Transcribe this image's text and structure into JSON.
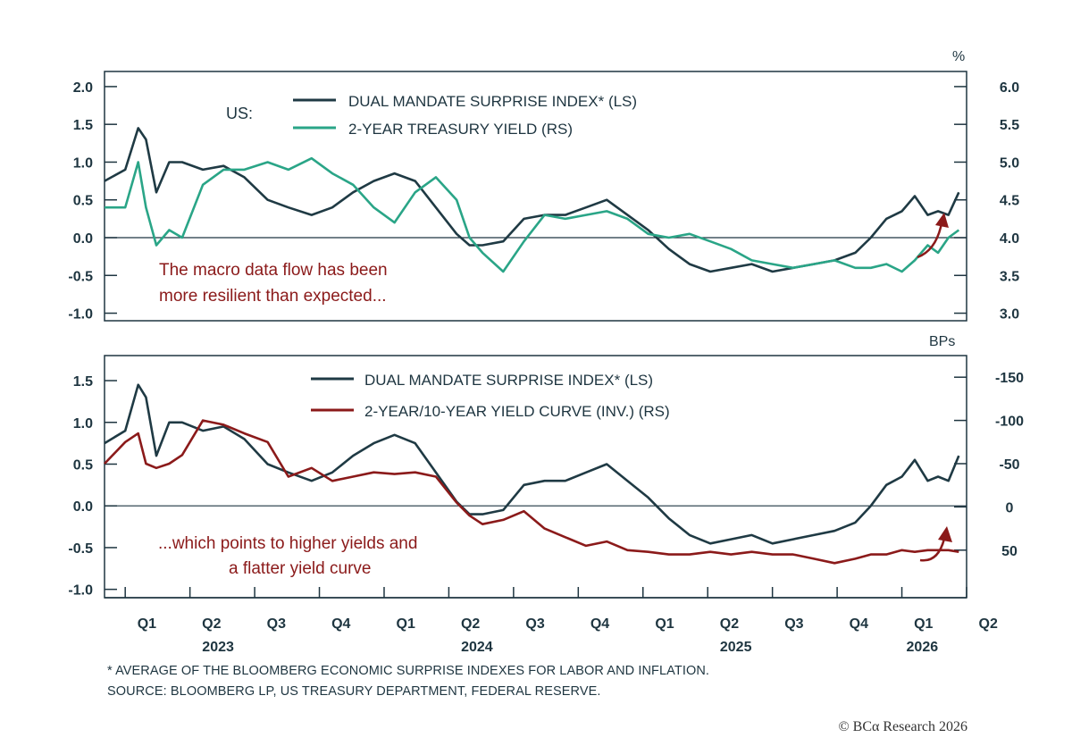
{
  "colors": {
    "surprise": "#1f3a44",
    "yield": "#2aa587",
    "curve": "#8b1a1a",
    "axis": "#1e3540",
    "arrow": "#8b1a1a"
  },
  "top_panel": {
    "region_label": "US:",
    "right_unit": "%",
    "legend": [
      "DUAL MANDATE SURPRISE INDEX* (LS)",
      "2-YEAR TREASURY YIELD (RS)"
    ],
    "annotation": [
      "The macro data flow has been",
      "more resilient than expected..."
    ]
  },
  "bottom_panel": {
    "right_unit": "BPs",
    "legend": [
      "DUAL MANDATE SURPRISE INDEX* (LS)",
      "2-YEAR/10-YEAR YIELD CURVE (INV.) (RS)"
    ],
    "annotation": [
      "...which points to higher yields and",
      "a flatter yield curve"
    ]
  },
  "x_axis": {
    "quarters": [
      "Q1",
      "Q2",
      "Q3",
      "Q4",
      "Q1",
      "Q2",
      "Q3",
      "Q4",
      "Q1",
      "Q2",
      "Q3",
      "Q4",
      "Q1",
      "Q2"
    ],
    "years": [
      "2023",
      "2024",
      "2025",
      "2026"
    ]
  },
  "footnote": "* AVERAGE OF THE BLOOMBERG ECONOMIC SURPRISE INDEXES FOR LABOR AND INFLATION.",
  "source": "SOURCE: BLOOMBERG LP, US TREASURY DEPARTMENT, FEDERAL RESERVE.",
  "copyright": "© BCα Research 2026",
  "chart_data": [
    {
      "type": "line",
      "x_start": 2022.92,
      "x_end": 2026.25,
      "left_axis": {
        "ticks": [
          "2.0",
          "1.5",
          "1.0",
          "0.5",
          "0.0",
          "-0.5",
          "-1.0"
        ],
        "ylim": [
          -1.1,
          2.2
        ]
      },
      "right_axis": {
        "ticks": [
          "6.0",
          "5.5",
          "5.0",
          "4.5",
          "4.0",
          "3.5",
          "3.0"
        ],
        "ylim": [
          2.9,
          6.2
        ]
      },
      "zero_line": 0,
      "series": [
        {
          "name": "DUAL MANDATE SURPRISE INDEX* (LS)",
          "axis": "left",
          "x": [
            2022.92,
            2023.0,
            2023.05,
            2023.08,
            2023.12,
            2023.17,
            2023.22,
            2023.3,
            2023.38,
            2023.46,
            2023.55,
            2023.63,
            2023.72,
            2023.8,
            2023.88,
            2023.96,
            2024.04,
            2024.12,
            2024.2,
            2024.28,
            2024.33,
            2024.38,
            2024.46,
            2024.54,
            2024.62,
            2024.7,
            2024.78,
            2024.86,
            2024.94,
            2025.02,
            2025.1,
            2025.18,
            2025.26,
            2025.34,
            2025.42,
            2025.5,
            2025.58,
            2025.66,
            2025.74,
            2025.82,
            2025.88,
            2025.94,
            2026.0,
            2026.05,
            2026.1,
            2026.14,
            2026.18,
            2026.22
          ],
          "values": [
            0.75,
            0.9,
            1.45,
            1.3,
            0.6,
            1.0,
            1.0,
            0.9,
            0.95,
            0.8,
            0.5,
            0.4,
            0.3,
            0.4,
            0.6,
            0.75,
            0.85,
            0.75,
            0.4,
            0.05,
            -0.1,
            -0.1,
            -0.05,
            0.25,
            0.3,
            0.3,
            0.4,
            0.5,
            0.3,
            0.1,
            -0.15,
            -0.35,
            -0.45,
            -0.4,
            -0.35,
            -0.45,
            -0.4,
            -0.35,
            -0.3,
            -0.2,
            0.0,
            0.25,
            0.35,
            0.55,
            0.3,
            0.35,
            0.3,
            0.6
          ]
        },
        {
          "name": "2-YEAR TREASURY YIELD (RS)",
          "axis": "right",
          "x": [
            2022.92,
            2023.0,
            2023.05,
            2023.08,
            2023.12,
            2023.17,
            2023.22,
            2023.3,
            2023.38,
            2023.46,
            2023.55,
            2023.63,
            2023.72,
            2023.8,
            2023.88,
            2023.96,
            2024.04,
            2024.12,
            2024.2,
            2024.28,
            2024.33,
            2024.38,
            2024.46,
            2024.54,
            2024.62,
            2024.7,
            2024.78,
            2024.86,
            2024.94,
            2025.02,
            2025.1,
            2025.18,
            2025.26,
            2025.34,
            2025.42,
            2025.5,
            2025.58,
            2025.66,
            2025.74,
            2025.82,
            2025.88,
            2025.94,
            2026.0,
            2026.05,
            2026.1,
            2026.14,
            2026.18,
            2026.22
          ],
          "values": [
            4.4,
            4.4,
            5.0,
            4.4,
            3.9,
            4.1,
            4.0,
            4.7,
            4.9,
            4.9,
            5.0,
            4.9,
            5.05,
            4.85,
            4.7,
            4.4,
            4.2,
            4.6,
            4.8,
            4.5,
            4.0,
            3.8,
            3.55,
            3.95,
            4.3,
            4.25,
            4.3,
            4.35,
            4.25,
            4.05,
            4.0,
            4.05,
            3.95,
            3.85,
            3.7,
            3.65,
            3.6,
            3.65,
            3.7,
            3.6,
            3.6,
            3.65,
            3.55,
            3.7,
            3.9,
            3.8,
            4.0,
            4.1
          ]
        }
      ]
    },
    {
      "type": "line",
      "x_start": 2022.92,
      "x_end": 2026.25,
      "left_axis": {
        "ticks": [
          "1.5",
          "1.0",
          "0.5",
          "0.0",
          "-0.5",
          "-1.0"
        ],
        "ylim": [
          -1.1,
          1.8
        ]
      },
      "right_axis": {
        "ticks": [
          "-150",
          "-100",
          "-50",
          "0",
          "50"
        ],
        "ylim": [
          -175,
          105
        ],
        "inverted": true
      },
      "zero_line": 0,
      "series": [
        {
          "name": "DUAL MANDATE SURPRISE INDEX* (LS)",
          "axis": "left",
          "x": [
            2022.92,
            2023.0,
            2023.05,
            2023.08,
            2023.12,
            2023.17,
            2023.22,
            2023.3,
            2023.38,
            2023.46,
            2023.55,
            2023.63,
            2023.72,
            2023.8,
            2023.88,
            2023.96,
            2024.04,
            2024.12,
            2024.2,
            2024.28,
            2024.33,
            2024.38,
            2024.46,
            2024.54,
            2024.62,
            2024.7,
            2024.78,
            2024.86,
            2024.94,
            2025.02,
            2025.1,
            2025.18,
            2025.26,
            2025.34,
            2025.42,
            2025.5,
            2025.58,
            2025.66,
            2025.74,
            2025.82,
            2025.88,
            2025.94,
            2026.0,
            2026.05,
            2026.1,
            2026.14,
            2026.18,
            2026.22
          ],
          "values": [
            0.75,
            0.9,
            1.45,
            1.3,
            0.6,
            1.0,
            1.0,
            0.9,
            0.95,
            0.8,
            0.5,
            0.4,
            0.3,
            0.4,
            0.6,
            0.75,
            0.85,
            0.75,
            0.4,
            0.05,
            -0.1,
            -0.1,
            -0.05,
            0.25,
            0.3,
            0.3,
            0.4,
            0.5,
            0.3,
            0.1,
            -0.15,
            -0.35,
            -0.45,
            -0.4,
            -0.35,
            -0.45,
            -0.4,
            -0.35,
            -0.3,
            -0.2,
            0.0,
            0.25,
            0.35,
            0.55,
            0.3,
            0.35,
            0.3,
            0.6
          ]
        },
        {
          "name": "2-YEAR/10-YEAR YIELD CURVE (INV.) (RS)",
          "axis": "right",
          "x": [
            2022.92,
            2023.0,
            2023.05,
            2023.08,
            2023.12,
            2023.17,
            2023.22,
            2023.3,
            2023.38,
            2023.46,
            2023.55,
            2023.63,
            2023.72,
            2023.8,
            2023.88,
            2023.96,
            2024.04,
            2024.12,
            2024.2,
            2024.28,
            2024.33,
            2024.38,
            2024.46,
            2024.54,
            2024.62,
            2024.7,
            2024.78,
            2024.86,
            2024.94,
            2025.02,
            2025.1,
            2025.18,
            2025.26,
            2025.34,
            2025.42,
            2025.5,
            2025.58,
            2025.66,
            2025.74,
            2025.82,
            2025.88,
            2025.94,
            2026.0,
            2026.05,
            2026.1,
            2026.14,
            2026.18,
            2026.22
          ],
          "values": [
            -50,
            -75,
            -85,
            -50,
            -45,
            -50,
            -60,
            -100,
            -95,
            -85,
            -75,
            -35,
            -45,
            -30,
            -35,
            -40,
            -38,
            -40,
            -35,
            -5,
            10,
            20,
            15,
            5,
            25,
            35,
            45,
            40,
            50,
            52,
            55,
            55,
            52,
            55,
            52,
            55,
            55,
            60,
            65,
            60,
            55,
            55,
            50,
            52,
            50,
            50,
            50,
            52
          ]
        }
      ]
    }
  ]
}
